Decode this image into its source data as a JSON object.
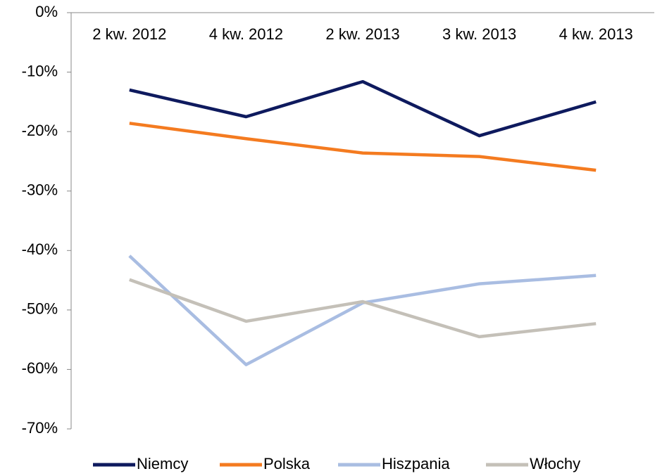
{
  "chart_data": {
    "type": "line",
    "categories": [
      "2 kw. 2012",
      "4 kw. 2012",
      "2 kw. 2013",
      "3 kw. 2013",
      "4 kw. 2013"
    ],
    "series": [
      {
        "name": "Niemcy",
        "color": "#0e1a5e",
        "values": [
          -13.0,
          -17.5,
          -11.6,
          -20.7,
          -15.0
        ]
      },
      {
        "name": "Polska",
        "color": "#f47b20",
        "values": [
          -18.6,
          -21.2,
          -23.6,
          -24.2,
          -26.5
        ]
      },
      {
        "name": "Hiszpania",
        "color": "#a9bde2",
        "values": [
          -40.9,
          -59.2,
          -48.8,
          -45.6,
          -44.2
        ]
      },
      {
        "name": "Włochy",
        "color": "#c4c0b8",
        "values": [
          -44.9,
          -51.9,
          -48.6,
          -54.5,
          -52.3
        ]
      }
    ],
    "ylim": [
      -70,
      0
    ],
    "yticks": [
      {
        "value": 0,
        "label": "0%"
      },
      {
        "value": -10,
        "label": "-10%"
      },
      {
        "value": -20,
        "label": "-20%"
      },
      {
        "value": -30,
        "label": "-30%"
      },
      {
        "value": -40,
        "label": "-40%"
      },
      {
        "value": -50,
        "label": "-50%"
      },
      {
        "value": -60,
        "label": "-60%"
      },
      {
        "value": -70,
        "label": "-70%"
      }
    ],
    "legend": "bottom"
  }
}
